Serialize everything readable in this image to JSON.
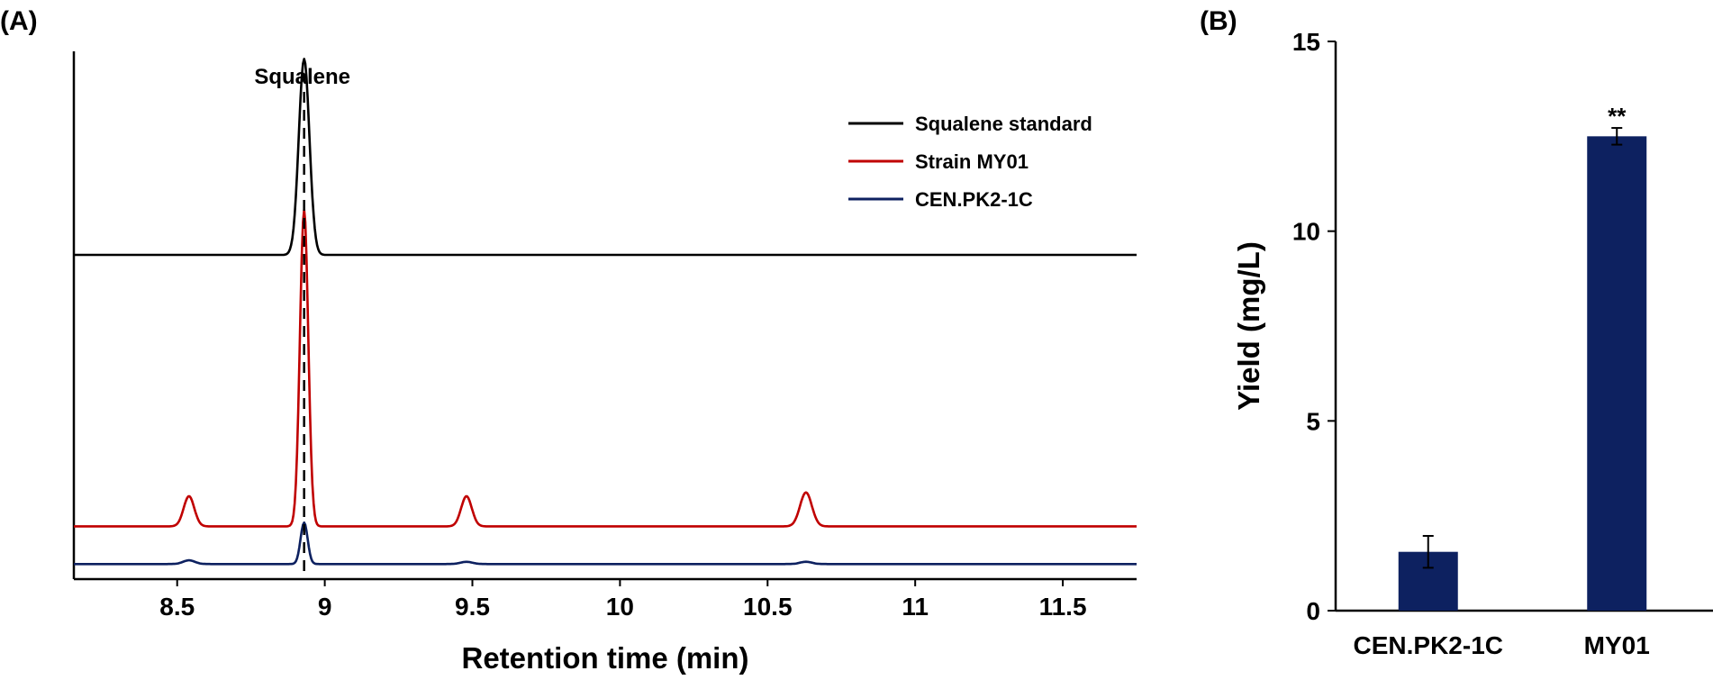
{
  "chart_data": [
    {
      "panel": "(A)",
      "type": "line",
      "xlabel": "Retention time (min)",
      "ylabel": "",
      "xlim": [
        8.15,
        11.75
      ],
      "x_ticks": [
        "8.5",
        "9",
        "9.5",
        "10",
        "10.5",
        "11",
        "11.5"
      ],
      "y_axis_ticks": false,
      "grid": false,
      "legend_position": "top-right",
      "annotation": {
        "label": "Squalene",
        "x": 8.93,
        "style": "dashed vertical line"
      },
      "series": [
        {
          "name": "Squalene standard",
          "color": "#000000",
          "baseline": 8.6,
          "peaks": [
            {
              "x": 8.93,
              "height": 5.2,
              "width": 0.018
            }
          ]
        },
        {
          "name": "Strain MY01",
          "color": "#c00000",
          "baseline": 1.4,
          "peaks": [
            {
              "x": 8.54,
              "height": 0.8,
              "width": 0.018
            },
            {
              "x": 8.93,
              "height": 8.4,
              "width": 0.014
            },
            {
              "x": 9.48,
              "height": 0.8,
              "width": 0.018
            },
            {
              "x": 10.63,
              "height": 0.9,
              "width": 0.02
            }
          ]
        },
        {
          "name": "CEN.PK2-1C",
          "color": "#0d2160",
          "baseline": 0.4,
          "peaks": [
            {
              "x": 8.54,
              "height": 0.1,
              "width": 0.02
            },
            {
              "x": 8.93,
              "height": 1.1,
              "width": 0.012
            },
            {
              "x": 9.48,
              "height": 0.06,
              "width": 0.02
            },
            {
              "x": 10.63,
              "height": 0.06,
              "width": 0.02
            }
          ]
        }
      ]
    },
    {
      "panel": "(B)",
      "type": "bar",
      "categories": [
        "CEN.PK2-1C",
        "MY01"
      ],
      "values": [
        1.55,
        12.5
      ],
      "errors": [
        0.42,
        0.22
      ],
      "significance": [
        "",
        "**"
      ],
      "bar_color": "#0d2160",
      "xlabel": "",
      "ylabel": "Yield (mg/L)",
      "ylim": [
        0,
        15
      ],
      "y_ticks": [
        0,
        5,
        10,
        15
      ],
      "grid": false
    }
  ]
}
